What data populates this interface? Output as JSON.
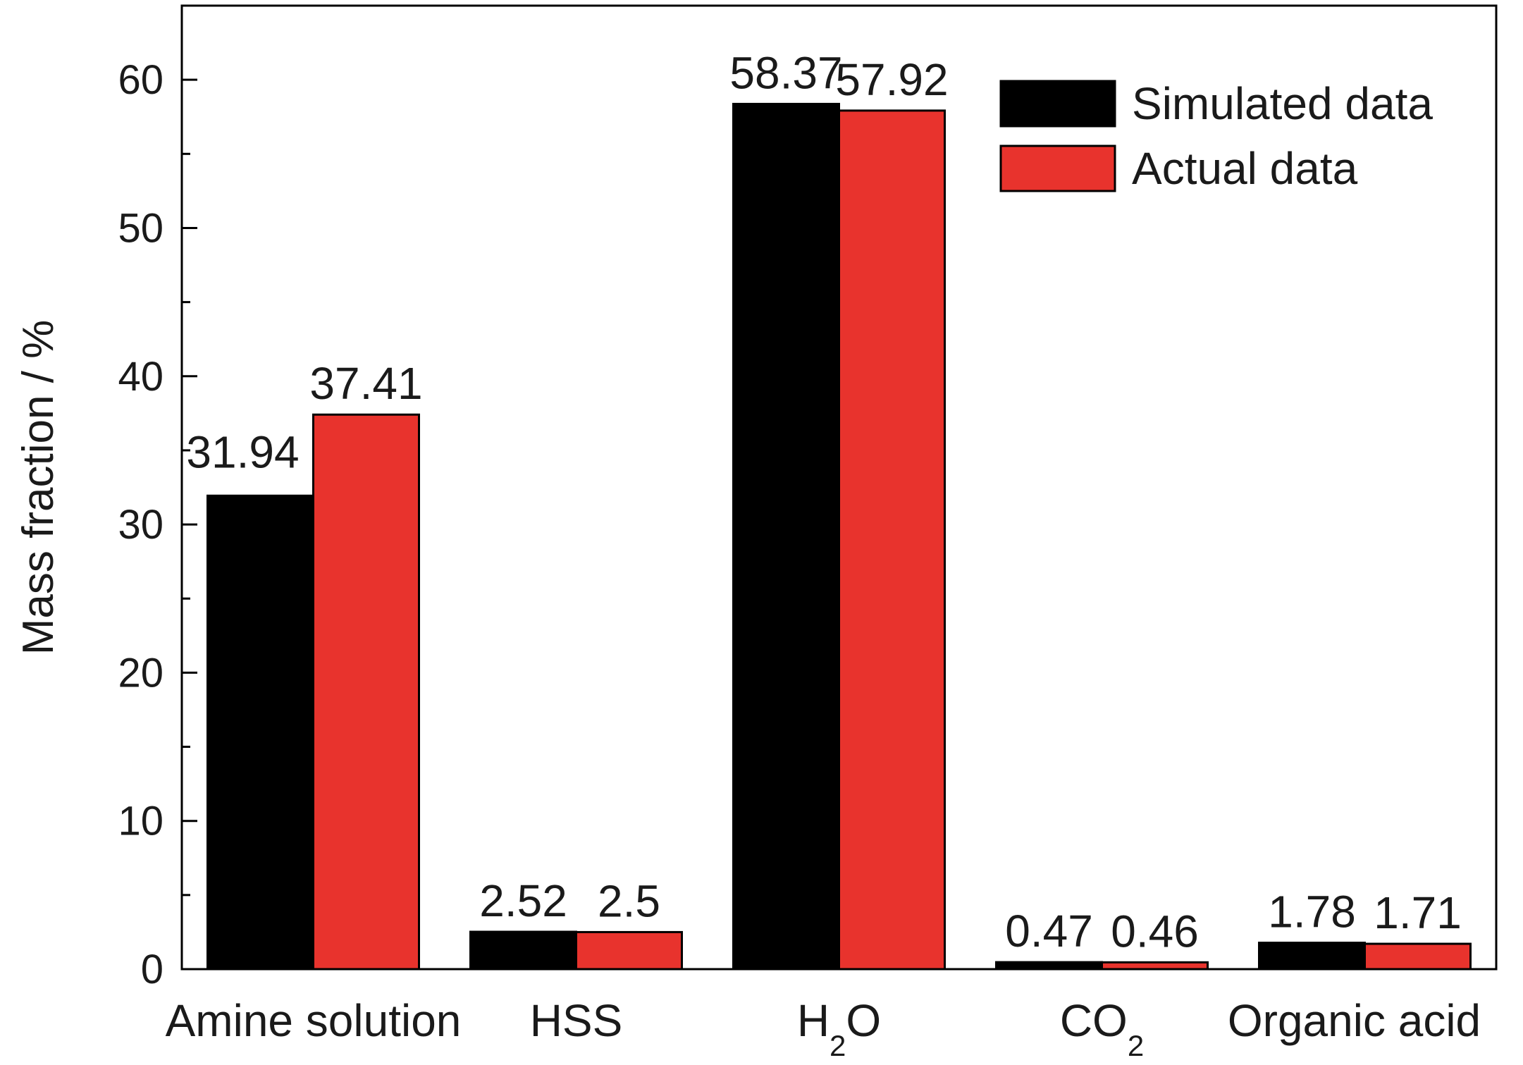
{
  "chart_data": {
    "type": "bar",
    "categories": [
      {
        "main": "Amine solution",
        "sub": "",
        "tail": ""
      },
      {
        "main": "HSS",
        "sub": "",
        "tail": ""
      },
      {
        "main": "H",
        "sub": "2",
        "tail": "O"
      },
      {
        "main": "CO",
        "sub": "2",
        "tail": ""
      },
      {
        "main": "Organic acid",
        "sub": "",
        "tail": ""
      }
    ],
    "series": [
      {
        "name": "Simulated data",
        "color": "#000000",
        "values": [
          31.94,
          2.52,
          58.37,
          0.47,
          1.78
        ],
        "labels": [
          "31.94",
          "2.52",
          "58.37",
          "0.47",
          "1.78"
        ]
      },
      {
        "name": "Actual data",
        "color": "#e8332d",
        "values": [
          37.41,
          2.5,
          57.92,
          0.46,
          1.71
        ],
        "labels": [
          "37.41",
          "2.5",
          "57.92",
          "0.46",
          "1.71"
        ]
      }
    ],
    "ylabel": "Mass fraction / %",
    "xlabel": "",
    "ylim": [
      0,
      65
    ],
    "yticks": [
      0,
      10,
      20,
      30,
      40,
      50,
      60
    ],
    "yminor_step": 5,
    "legend_position": "top-right",
    "grid": false
  }
}
